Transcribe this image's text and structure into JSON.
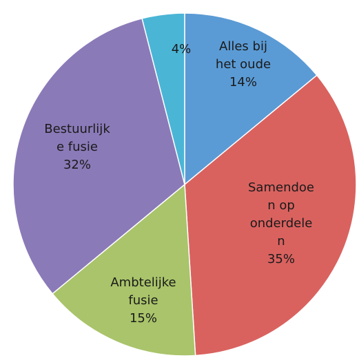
{
  "chart_data": {
    "type": "pie",
    "title": "",
    "start_angle_deg": 0,
    "direction": "clockwise",
    "slices": [
      {
        "label_lines": [
          "Alles bij",
          "het oude",
          "14%"
        ],
        "value": 14,
        "color": "#5B9BD5"
      },
      {
        "label_lines": [
          "Samendoe",
          "n op",
          "onderdele",
          "n",
          "35%"
        ],
        "value": 35,
        "color": "#D9625F"
      },
      {
        "label_lines": [
          "Ambtelijke",
          "fusie",
          "15%"
        ],
        "value": 15,
        "color": "#A9C46A"
      },
      {
        "label_lines": [
          "Bestuurlijk",
          "e fusie",
          "32%"
        ],
        "value": 32,
        "color": "#8B7AB8"
      },
      {
        "label_lines": [
          "4%"
        ],
        "value": 4,
        "color": "#4BB5D6"
      }
    ]
  }
}
